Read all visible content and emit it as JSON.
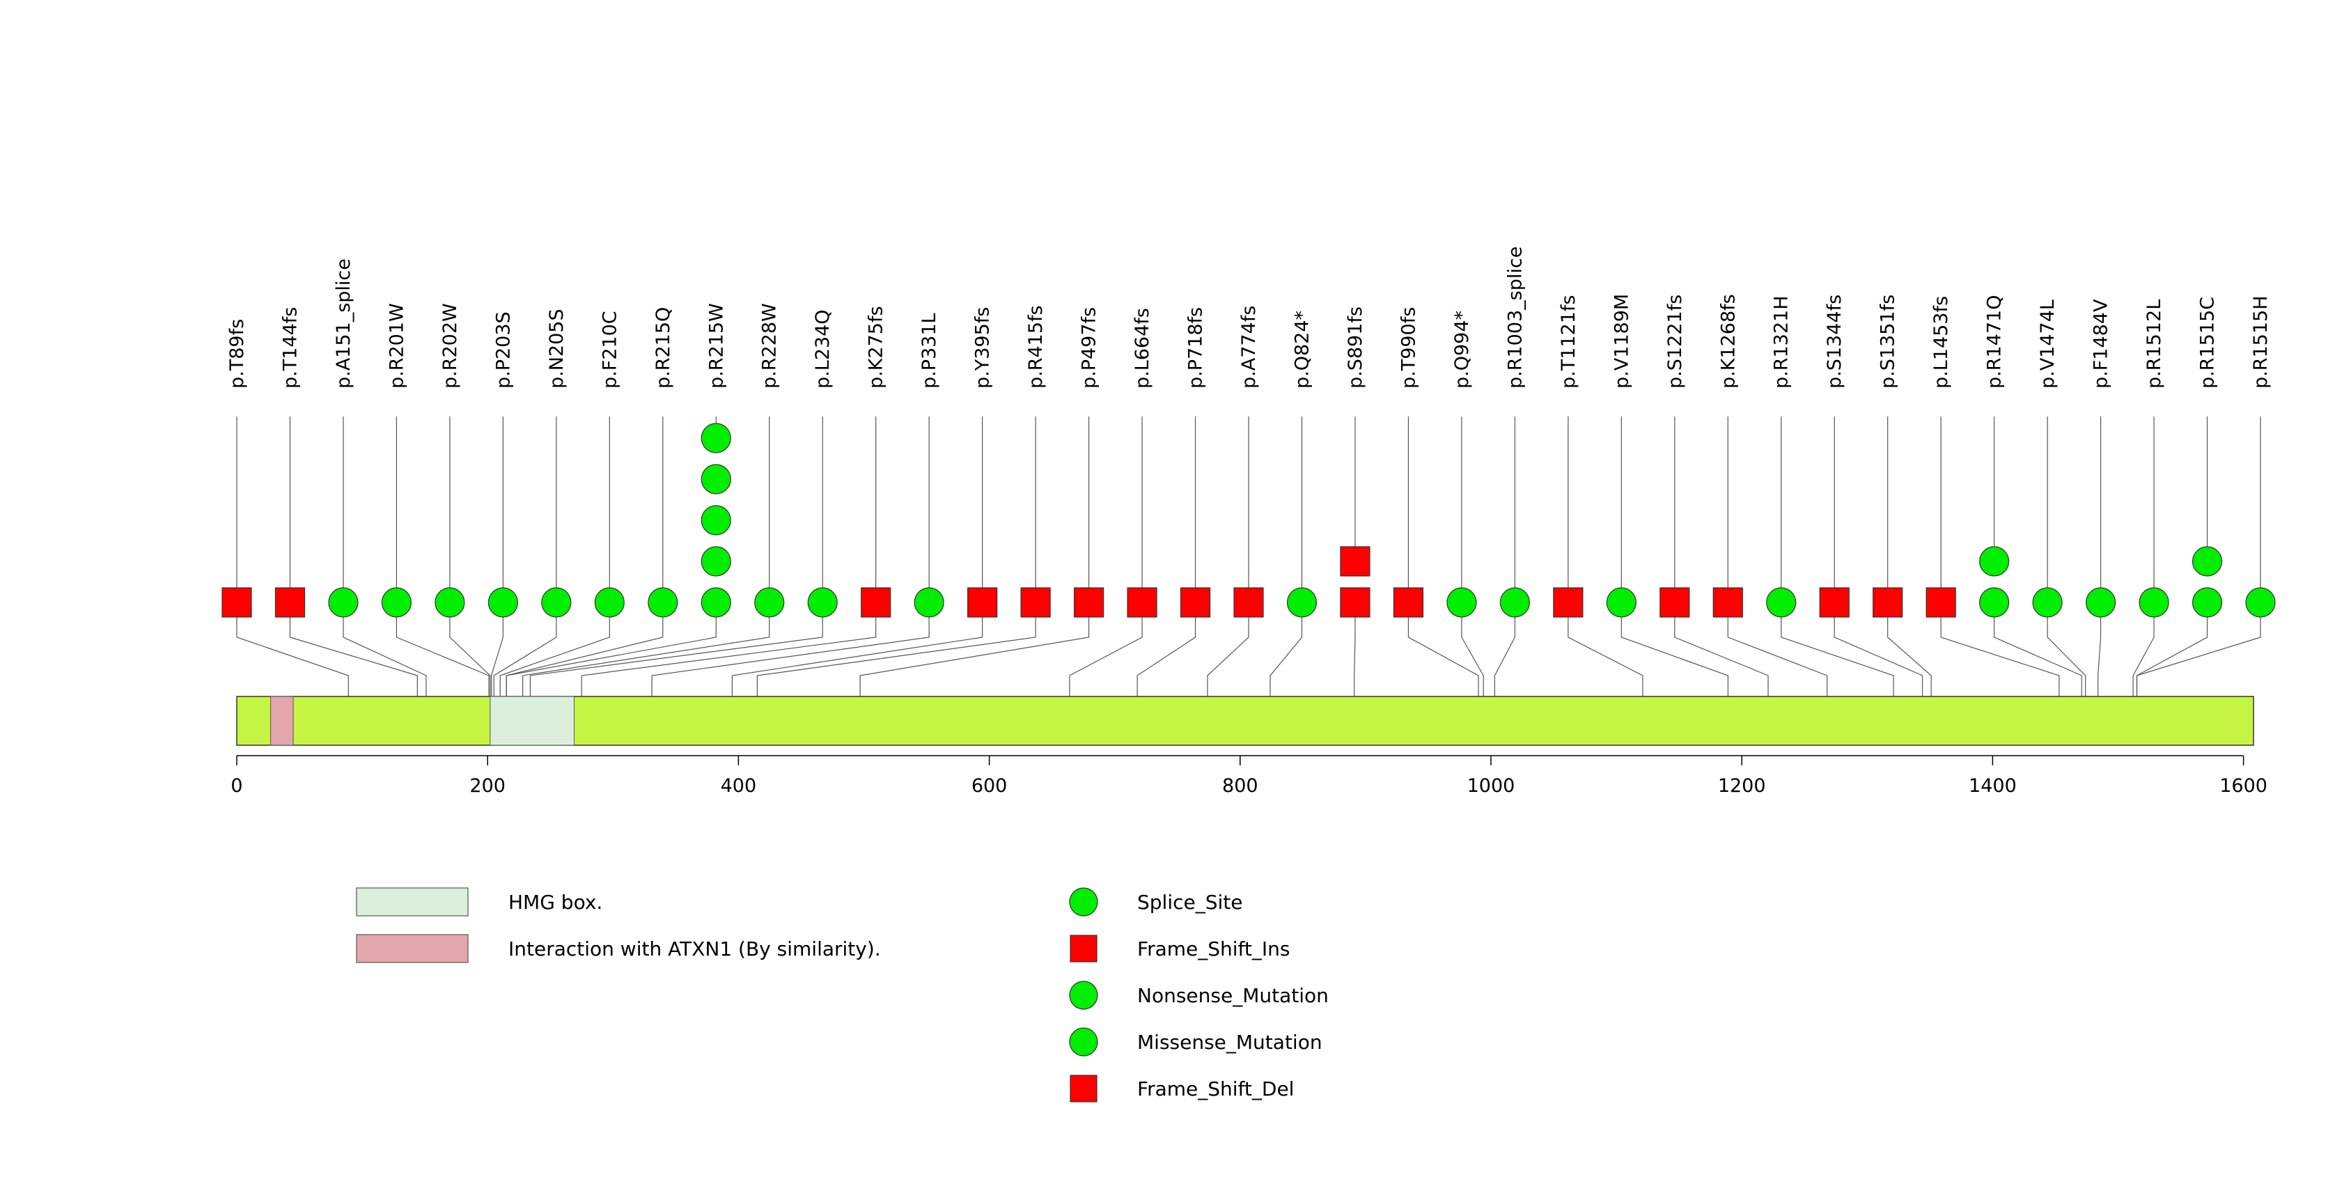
{
  "colors": {
    "protein": "#c5f542",
    "hmg": "#dcefdc",
    "atxn1": "#e3a6ac",
    "circle": "#00ee00",
    "square": "#ff0000",
    "line": "#555555"
  },
  "chart_data": {
    "type": "lollipop",
    "protein_length": 1608,
    "xlim": [
      0,
      1608
    ],
    "xticks": [
      0,
      200,
      400,
      600,
      800,
      1000,
      1200,
      1400,
      1600
    ],
    "xtick_labels": [
      "0",
      "200",
      "400",
      "600",
      "800",
      "1000",
      "1200",
      "1400",
      "1600"
    ],
    "domains": [
      {
        "name": "HMG box.",
        "start": 202,
        "end": 269,
        "color_key": "hmg"
      },
      {
        "name": "Interaction with ATXN1 (By similarity).",
        "start": 27,
        "end": 45,
        "color_key": "atxn1"
      }
    ],
    "mutations": [
      {
        "label": "p.T89fs",
        "position": 89,
        "count": 1,
        "shape": "square"
      },
      {
        "label": "p.T144fs",
        "position": 144,
        "count": 1,
        "shape": "square"
      },
      {
        "label": "p.A151_splice",
        "position": 151,
        "count": 1,
        "shape": "circle"
      },
      {
        "label": "p.R201W",
        "position": 201,
        "count": 1,
        "shape": "circle"
      },
      {
        "label": "p.R202W",
        "position": 202,
        "count": 1,
        "shape": "circle"
      },
      {
        "label": "p.P203S",
        "position": 203,
        "count": 1,
        "shape": "circle"
      },
      {
        "label": "p.N205S",
        "position": 205,
        "count": 1,
        "shape": "circle"
      },
      {
        "label": "p.F210C",
        "position": 210,
        "count": 1,
        "shape": "circle"
      },
      {
        "label": "p.R215Q",
        "position": 215,
        "count": 1,
        "shape": "circle"
      },
      {
        "label": "p.R215W",
        "position": 215,
        "count": 5,
        "shape": "circle"
      },
      {
        "label": "p.R228W",
        "position": 228,
        "count": 1,
        "shape": "circle"
      },
      {
        "label": "p.L234Q",
        "position": 234,
        "count": 1,
        "shape": "circle"
      },
      {
        "label": "p.K275fs",
        "position": 275,
        "count": 1,
        "shape": "square"
      },
      {
        "label": "p.P331L",
        "position": 331,
        "count": 1,
        "shape": "circle"
      },
      {
        "label": "p.Y395fs",
        "position": 395,
        "count": 1,
        "shape": "square"
      },
      {
        "label": "p.R415fs",
        "position": 415,
        "count": 1,
        "shape": "square"
      },
      {
        "label": "p.P497fs",
        "position": 497,
        "count": 1,
        "shape": "square"
      },
      {
        "label": "p.L664fs",
        "position": 664,
        "count": 1,
        "shape": "square"
      },
      {
        "label": "p.P718fs",
        "position": 718,
        "count": 1,
        "shape": "square"
      },
      {
        "label": "p.A774fs",
        "position": 774,
        "count": 1,
        "shape": "square"
      },
      {
        "label": "p.Q824*",
        "position": 824,
        "count": 1,
        "shape": "circle"
      },
      {
        "label": "p.S891fs",
        "position": 891,
        "count": 2,
        "shape": "square"
      },
      {
        "label": "p.T990fs",
        "position": 990,
        "count": 1,
        "shape": "square"
      },
      {
        "label": "p.Q994*",
        "position": 994,
        "count": 1,
        "shape": "circle"
      },
      {
        "label": "p.R1003_splice",
        "position": 1003,
        "count": 1,
        "shape": "circle"
      },
      {
        "label": "p.T1121fs",
        "position": 1121,
        "count": 1,
        "shape": "square"
      },
      {
        "label": "p.V1189M",
        "position": 1189,
        "count": 1,
        "shape": "circle"
      },
      {
        "label": "p.S1221fs",
        "position": 1221,
        "count": 1,
        "shape": "square"
      },
      {
        "label": "p.K1268fs",
        "position": 1268,
        "count": 1,
        "shape": "square"
      },
      {
        "label": "p.R1321H",
        "position": 1321,
        "count": 1,
        "shape": "circle"
      },
      {
        "label": "p.S1344fs",
        "position": 1344,
        "count": 1,
        "shape": "square"
      },
      {
        "label": "p.S1351fs",
        "position": 1351,
        "count": 1,
        "shape": "square"
      },
      {
        "label": "p.L1453fs",
        "position": 1453,
        "count": 1,
        "shape": "square"
      },
      {
        "label": "p.R1471Q",
        "position": 1471,
        "count": 2,
        "shape": "circle"
      },
      {
        "label": "p.V1474L",
        "position": 1474,
        "count": 1,
        "shape": "circle"
      },
      {
        "label": "p.F1484V",
        "position": 1484,
        "count": 1,
        "shape": "circle"
      },
      {
        "label": "p.R1512L",
        "position": 1512,
        "count": 1,
        "shape": "circle"
      },
      {
        "label": "p.R1515C",
        "position": 1515,
        "count": 2,
        "shape": "circle"
      },
      {
        "label": "p.R1515H",
        "position": 1515,
        "count": 1,
        "shape": "circle"
      }
    ],
    "legend": {
      "domains": [
        {
          "label": "HMG box.",
          "color_key": "hmg"
        },
        {
          "label": "Interaction with ATXN1 (By similarity).",
          "color_key": "atxn1"
        }
      ],
      "mutation_types": [
        {
          "label": "Splice_Site",
          "shape": "circle"
        },
        {
          "label": "Frame_Shift_Ins",
          "shape": "square"
        },
        {
          "label": "Nonsense_Mutation",
          "shape": "circle"
        },
        {
          "label": "Missense_Mutation",
          "shape": "circle"
        },
        {
          "label": "Frame_Shift_Del",
          "shape": "square"
        }
      ]
    }
  }
}
